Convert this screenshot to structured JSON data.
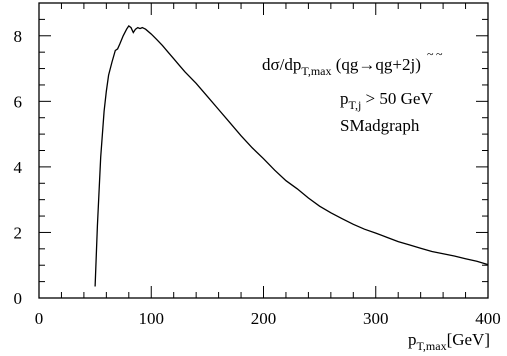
{
  "chart_data": {
    "type": "line",
    "title": "",
    "xlabel": {
      "main": "p",
      "sub": "T,max",
      "unit": "[GeV]"
    },
    "ylabel": "",
    "xlim": [
      0,
      400
    ],
    "ylim": [
      0,
      9
    ],
    "xticks": [
      0,
      100,
      200,
      300,
      400
    ],
    "yticks": [
      0,
      2,
      4,
      6,
      8
    ],
    "grid": false,
    "series": [
      {
        "x": [
          50,
          52,
          55,
          58,
          60,
          62,
          65,
          68,
          70,
          72,
          75,
          78,
          80,
          82,
          84,
          86,
          88,
          90,
          92,
          95,
          100,
          105,
          110,
          115,
          120,
          125,
          130,
          140,
          150,
          160,
          170,
          180,
          190,
          200,
          210,
          220,
          230,
          240,
          250,
          260,
          270,
          280,
          290,
          300,
          310,
          320,
          330,
          340,
          350,
          360,
          370,
          380,
          390,
          400
        ],
        "y": [
          0.35,
          2.2,
          4.3,
          5.7,
          6.3,
          6.8,
          7.2,
          7.55,
          7.6,
          7.75,
          8.0,
          8.2,
          8.3,
          8.25,
          8.1,
          8.2,
          8.25,
          8.22,
          8.25,
          8.2,
          8.05,
          7.88,
          7.7,
          7.5,
          7.3,
          7.1,
          6.9,
          6.55,
          6.15,
          5.75,
          5.35,
          4.95,
          4.58,
          4.25,
          3.9,
          3.58,
          3.33,
          3.05,
          2.8,
          2.6,
          2.42,
          2.25,
          2.1,
          1.98,
          1.85,
          1.72,
          1.62,
          1.52,
          1.42,
          1.35,
          1.28,
          1.2,
          1.12,
          1.02
        ]
      }
    ],
    "annotations": {
      "line1": {
        "a": "dσ/dp",
        "sub": "T,max",
        "b": " (qg→",
        "tilde_q": "q",
        "tilde_g": "g",
        "c": "+2j)"
      },
      "line2": {
        "a": "p",
        "sub": "T,j",
        "b": " > 50 GeV"
      },
      "line3": "SMadgraph"
    }
  }
}
